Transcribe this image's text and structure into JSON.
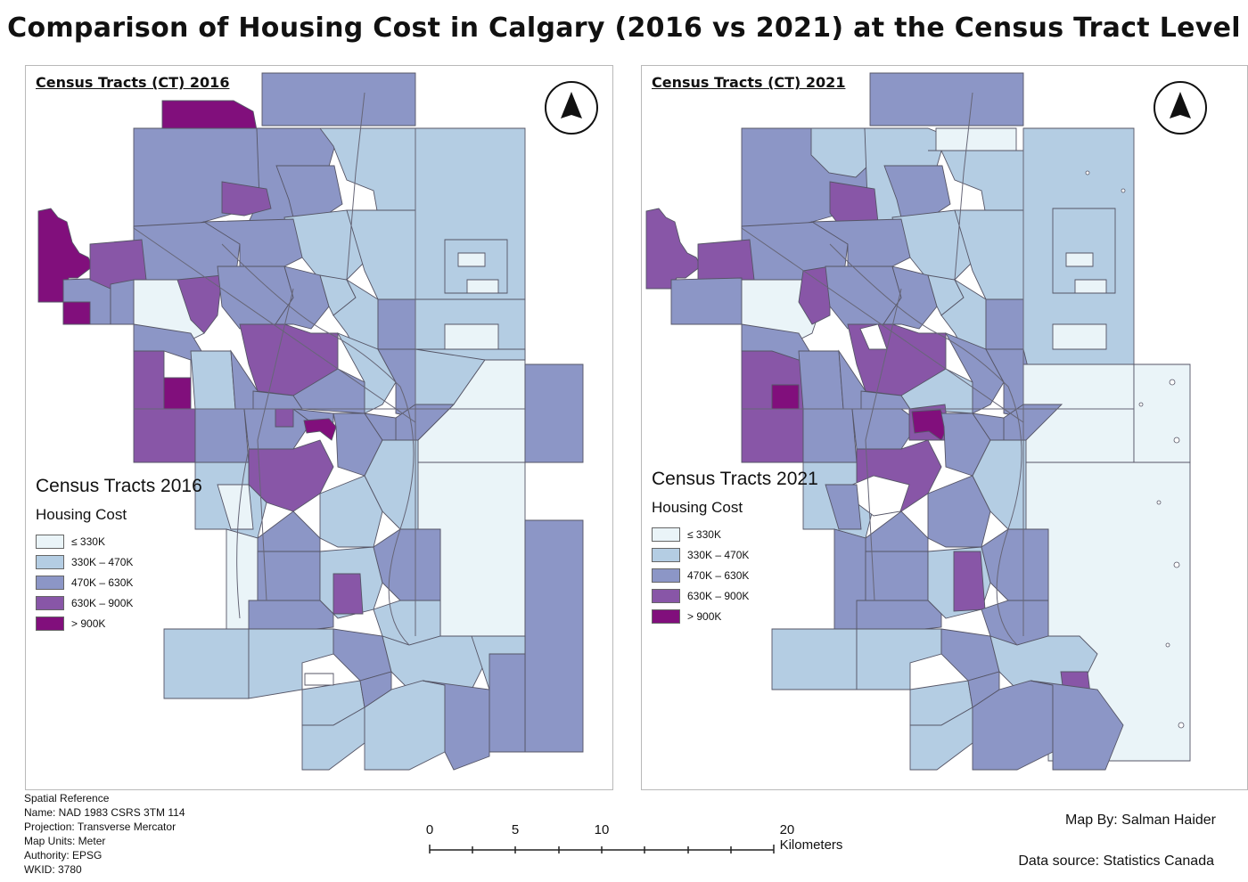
{
  "title": "Comparison of Housing Cost in Calgary (2016 vs 2021) at the Census Tract Level",
  "colors": {
    "lte_330k": "#eaf4f8",
    "330_470k": "#b4cde3",
    "470_630k": "#8c96c6",
    "630_900k": "#8856a7",
    "gt_900k": "#810f7c",
    "boundary": "#555566"
  },
  "panels": [
    {
      "heading": "Census Tracts (CT) 2016",
      "legend_title": "Census Tracts 2016",
      "legend_subtitle": "Housing Cost",
      "north_arrow_icon": "north-arrow-icon"
    },
    {
      "heading": "Census Tracts (CT) 2021",
      "legend_title": "Census Tracts 2021",
      "legend_subtitle": "Housing Cost",
      "north_arrow_icon": "north-arrow-icon"
    }
  ],
  "legend_classes": [
    {
      "label": "≤ 330K"
    },
    {
      "label": "330K – 470K"
    },
    {
      "label": "470K – 630K"
    },
    {
      "label": "630K – 900K"
    },
    {
      "label": "> 900K"
    }
  ],
  "spatial_reference": {
    "heading": "Spatial Reference",
    "name": "Name: NAD 1983 CSRS 3TM 114",
    "projection": "Projection: Transverse Mercator",
    "units": "Map Units: Meter",
    "authority": "Authority: EPSG",
    "wkid": "WKID: 3780"
  },
  "scale_bar": {
    "labels": [
      "0",
      "5",
      "10",
      "20 Kilometers"
    ]
  },
  "credit": "Map By: Salman Haider",
  "source": "Data source: Statistics Canada"
}
